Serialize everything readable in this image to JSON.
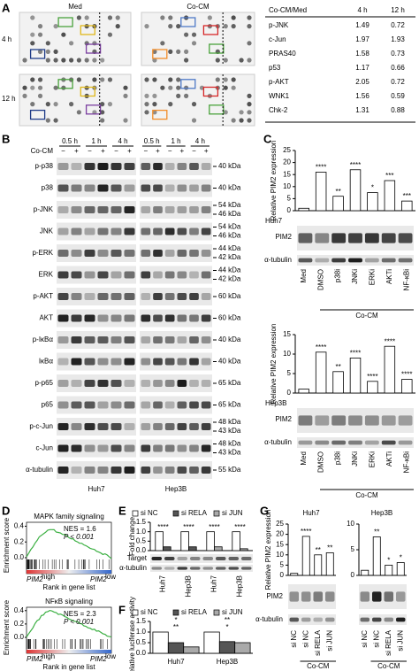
{
  "figure_labels": [
    "A",
    "B",
    "C",
    "D",
    "E",
    "F",
    "G"
  ],
  "panel_a": {
    "conditions": [
      "Med",
      "Co-CM"
    ],
    "times": [
      "4 h",
      "12 h"
    ],
    "table": {
      "header": [
        "Co-CM/Med",
        "4 h",
        "12 h"
      ],
      "rows": [
        {
          "name": "p-JNK",
          "color": "#4aa23c",
          "values": [
            1.49,
            0.72
          ]
        },
        {
          "name": "c-Jun",
          "color": "#d62728",
          "values": [
            1.97,
            1.93
          ]
        },
        {
          "name": "PRAS40",
          "color": "#f28e2b",
          "values": [
            1.58,
            0.73
          ]
        },
        {
          "name": "p53",
          "color": "#e0b81a",
          "values": [
            1.17,
            0.66
          ]
        },
        {
          "name": "p-AKT",
          "color": "#4e79c7",
          "values": [
            2.05,
            0.72
          ]
        },
        {
          "name": "WNK1",
          "color": "#7b3fa0",
          "values": [
            1.56,
            0.59
          ]
        },
        {
          "name": "Chk-2",
          "color": "#1f3c88",
          "values": [
            1.31,
            0.88
          ]
        }
      ]
    }
  },
  "panel_b": {
    "times": [
      "0.5 h",
      "1 h",
      "4 h"
    ],
    "treatment": "Co-CM",
    "signs": [
      "−",
      "+"
    ],
    "cells": [
      "Huh7",
      "Hep3B"
    ],
    "rows": [
      {
        "name": "p-p38",
        "kda": [
          "40 kDa"
        ]
      },
      {
        "name": "p38",
        "kda": [
          "40 kDa"
        ]
      },
      {
        "name": "p-JNK",
        "kda": [
          "54 kDa",
          "46 kDa"
        ]
      },
      {
        "name": "JNK",
        "kda": [
          "54 kDa",
          "46 kDa"
        ]
      },
      {
        "name": "p-ERK",
        "kda": [
          "44 kDa",
          "42 kDa"
        ]
      },
      {
        "name": "ERK",
        "kda": [
          "44 kDa",
          "42 kDa"
        ]
      },
      {
        "name": "p-AKT",
        "kda": [
          "60 kDa"
        ]
      },
      {
        "name": "AKT",
        "kda": [
          "60 kDa"
        ]
      },
      {
        "name": "p-IκBα",
        "kda": [
          "40 kDa"
        ]
      },
      {
        "name": "IκBα",
        "kda": [
          "40 kDa"
        ]
      },
      {
        "name": "p-p65",
        "kda": [
          "65 kDa"
        ]
      },
      {
        "name": "p65",
        "kda": [
          "65 kDa"
        ]
      },
      {
        "name": "p-c-Jun",
        "kda": [
          "48 kDa",
          "43 kDa"
        ]
      },
      {
        "name": "c-Jun",
        "kda": [
          "48 kDa",
          "43 kDa"
        ]
      },
      {
        "name": "α-tubulin",
        "kda": [
          "55 kDa"
        ]
      }
    ]
  },
  "panel_c": {
    "cells": [
      "Huh7",
      "Hep3B"
    ],
    "blots": [
      "PIM2",
      "α-tubulin"
    ],
    "group": "Co-CM"
  },
  "panel_d": {
    "ylabel": "Enrichment score",
    "xlabel": "Rank in gene list",
    "gene": "PIM2",
    "high": "high",
    "low": "low",
    "plots": [
      {
        "title": "MAPK family signaling",
        "nes": "NES = 1.6",
        "p": "P < 0.001",
        "ylim": [
          0,
          0.45
        ],
        "yticks": [
          {
            "value": 0,
            "label": "0.0"
          },
          0.2,
          0.4
        ]
      },
      {
        "title": "NFκB signaling",
        "nes": "NES = 2.3",
        "p": "P < 0.001",
        "ylim": [
          0,
          0.45
        ],
        "yticks": [
          {
            "value": 0,
            "label": "0.0"
          },
          0.2,
          0.4
        ]
      }
    ]
  },
  "panel_e": {
    "blots": [
      "Target",
      "α-tubulin"
    ]
  },
  "panel_g": {
    "cells": [
      "Huh7",
      "Hep3B"
    ],
    "blots": [
      "PIM2",
      "α-tubulin"
    ],
    "group": "Co-CM"
  },
  "chart_data": [
    {
      "type": "bar",
      "ylabel": "Relative PIM2 expression",
      "categories": [
        "Med",
        "DMSO",
        "p38i",
        "JNKi",
        "ERKi",
        "AKTi",
        "NF-κBi"
      ],
      "values": [
        1,
        16,
        6,
        17,
        7.5,
        12.5,
        4
      ],
      "color": "#ffffff",
      "ylim": [
        0,
        25
      ],
      "yticks": [
        0,
        5,
        10,
        15,
        20,
        25
      ],
      "annotations": [
        null,
        "****",
        "**",
        "****",
        "*",
        "***",
        "***"
      ]
    },
    {
      "type": "bar",
      "ylabel": "Relative PIM2 expression",
      "categories": [
        "Med",
        "DMSO",
        "p38i",
        "JNKi",
        "ERKi",
        "AKTi",
        "NF-κBi"
      ],
      "values": [
        1,
        10.5,
        5.5,
        9,
        3,
        12,
        3.5
      ],
      "color": "#ffffff",
      "ylim": [
        0,
        15
      ],
      "yticks": [
        0,
        5,
        10,
        15
      ],
      "annotations": [
        null,
        "****",
        "**",
        "****",
        "****",
        "****",
        "****"
      ]
    },
    {
      "type": "bar",
      "ylabel": "Fold change",
      "categories": [
        "Huh7",
        "Hep3B",
        "Huh7",
        "Hep3B"
      ],
      "series": [
        {
          "name": "si NC",
          "color": "#ffffff",
          "values": [
            1,
            1,
            1,
            1
          ]
        },
        {
          "name": "si RELA",
          "color": "#555555",
          "values": [
            0.2,
            0.2,
            null,
            null
          ]
        },
        {
          "name": "si JUN",
          "color": "#aaaaaa",
          "values": [
            null,
            null,
            0.2,
            0.1
          ]
        }
      ],
      "ylim": [
        0,
        1.5
      ],
      "yticks": [
        {
          "value": 0,
          "label": "0.0"
        },
        0.5,
        {
          "value": 1,
          "label": "1.0"
        },
        1.5
      ],
      "annotations": [
        [
          "****"
        ],
        [
          "****"
        ],
        [
          "****"
        ],
        [
          "****"
        ]
      ]
    },
    {
      "type": "bar",
      "ylabel": "Relative luciferase activity",
      "categories": [
        "Huh7",
        "Hep3B"
      ],
      "series": [
        {
          "name": "si NC",
          "color": "#ffffff",
          "values": [
            1,
            1
          ]
        },
        {
          "name": "si RELA",
          "color": "#555555",
          "values": [
            0.5,
            0.55
          ]
        },
        {
          "name": "si JUN",
          "color": "#aaaaaa",
          "values": [
            0.3,
            0.5
          ]
        }
      ],
      "ylim": [
        0,
        1.5
      ],
      "yticks": [
        {
          "value": 0,
          "label": "0.0"
        },
        0.5,
        {
          "value": 1,
          "label": "1.0"
        },
        1.5
      ],
      "annotations": [
        [
          "**",
          "*"
        ],
        [
          "*",
          "**"
        ]
      ]
    },
    {
      "type": "bar",
      "ylabel": "Relative PIM2 expression",
      "categories": [
        "si NC",
        "si NC",
        "si RELA",
        "si JUN"
      ],
      "values": [
        1,
        19,
        10,
        11
      ],
      "color": "#ffffff",
      "ylim": [
        0,
        25
      ],
      "yticks": [
        0,
        5,
        10,
        15,
        20,
        25
      ],
      "annotations": [
        null,
        "****",
        "**",
        "**"
      ]
    },
    {
      "type": "bar",
      "categories": [
        "si NC",
        "si NC",
        "si RELA",
        "si JUN"
      ],
      "values": [
        1,
        7.5,
        2,
        2.5
      ],
      "color": "#ffffff",
      "ylim": [
        0,
        10
      ],
      "yticks": [
        0,
        5,
        10
      ],
      "annotations": [
        null,
        "**",
        "*",
        "*"
      ]
    }
  ]
}
